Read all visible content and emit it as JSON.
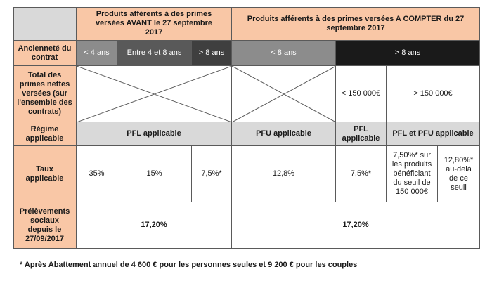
{
  "header": {
    "before": "Produits afférents à des primes versées AVANT le 27 septembre 2017",
    "after": "Produits afférents à des primes versées A COMPTER du 27 septembre 2017"
  },
  "rows": {
    "anciennete": "Ancienneté du contrat",
    "total_primes": "Total des primes nettes versées (sur l'ensemble des contrats)",
    "regime": "Régime applicable",
    "taux": "Taux applicable",
    "prelevements": "Prélèvements sociaux depuis le 27/09/2017"
  },
  "anciennete": {
    "lt4": "< 4 ans",
    "between": "Entre 4 et 8 ans",
    "gt8": "> 8 ans",
    "after_lt8": "< 8 ans",
    "after_gt8": "> 8 ans"
  },
  "total_primes": {
    "lt150": "< 150 000€",
    "gt150": "> 150 000€"
  },
  "regime": {
    "before": "PFL applicable",
    "pfu": "PFU applicable",
    "pfl": "PFL applicable",
    "pfl_pfu": "PFL et PFU applicable"
  },
  "taux": {
    "t35": "35%",
    "t15": "15%",
    "t75_star": "7,5%*",
    "t128": "12,8%",
    "t75_star_b": "7,5%*",
    "t75_seuil": "7,50%* sur les produits bénéficiant du seuil de 150 000€",
    "t128_delta": "12,80%* au-delà de ce seuil"
  },
  "prelevements": {
    "before": "17,20%",
    "after": "17,20%"
  },
  "footnote": "* Après Abattement annuel de 4 600 € pour les personnes seules et 9 200 € pour les couples"
}
